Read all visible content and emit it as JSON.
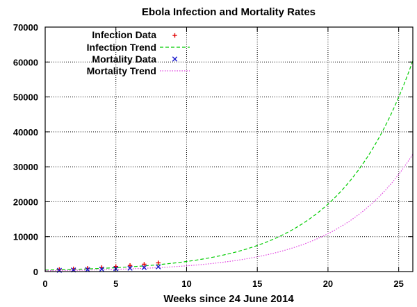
{
  "chart_data": {
    "type": "scatter",
    "title": "Ebola Infection and Mortality Rates",
    "xlabel": "Weeks since 24 June 2014",
    "ylabel": "",
    "xlim": [
      0,
      26
    ],
    "ylim": [
      0,
      70000
    ],
    "xticks": [
      0,
      5,
      10,
      15,
      20,
      25
    ],
    "yticks": [
      0,
      10000,
      20000,
      30000,
      40000,
      50000,
      60000,
      70000
    ],
    "grid": true,
    "legend_position": "top-left",
    "series": [
      {
        "name": "Infection Data",
        "kind": "points",
        "marker": "plus",
        "color": "#e00000",
        "x": [
          1,
          2,
          3,
          4,
          5,
          6,
          7,
          8
        ],
        "y": [
          600,
          780,
          950,
          1150,
          1450,
          1750,
          2100,
          2500
        ]
      },
      {
        "name": "Infection Trend",
        "kind": "line",
        "dash": "dashed",
        "color": "#00cc00",
        "equation": "y = a * exp(b * x)",
        "a": 432,
        "b": 0.19
      },
      {
        "name": "Mortality Data",
        "kind": "points",
        "marker": "cross",
        "color": "#1a1acc",
        "x": [
          1,
          2,
          3,
          4,
          5,
          6,
          7,
          8
        ],
        "y": [
          350,
          460,
          560,
          680,
          800,
          950,
          1150,
          1350
        ]
      },
      {
        "name": "Mortality Trend",
        "kind": "line",
        "dash": "dotted",
        "color": "#e040e0",
        "equation": "y = a * exp(b * x)",
        "a": 250,
        "b": 0.1885
      }
    ]
  }
}
